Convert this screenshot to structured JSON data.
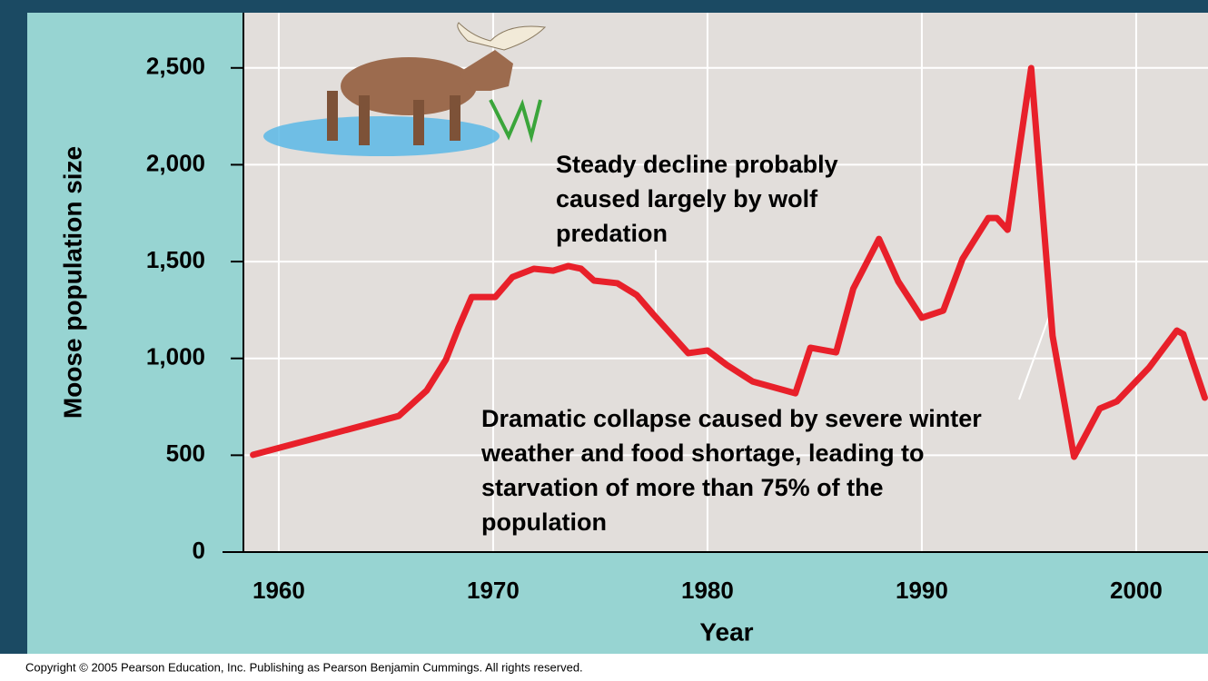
{
  "chart_data": {
    "type": "line",
    "x_label": "Year",
    "y_label": "Moose population size",
    "x": [
      1958.8,
      1965.6,
      1966.9,
      1967.8,
      1968.4,
      1969.0,
      1970.1,
      1970.9,
      1971.9,
      1972.8,
      1973.5,
      1974.1,
      1974.7,
      1975.8,
      1976.7,
      1977.5,
      1979.1,
      1980.0,
      1980.9,
      1982.1,
      1984.1,
      1984.8,
      1986.0,
      1986.8,
      1988.0,
      1988.9,
      1990.0,
      1991.0,
      1991.9,
      1993.1,
      1993.5,
      1994.0,
      1995.1,
      1996.1,
      1997.1,
      1998.3,
      1999.1,
      2000.6,
      2001.9,
      2002.2,
      2003.2
    ],
    "series": [
      {
        "color": "#e8202a",
        "values": [
          502,
          703,
          834,
          994,
          1163,
          1317,
          1317,
          1420,
          1463,
          1453,
          1477,
          1463,
          1402,
          1388,
          1327,
          1224,
          1027,
          1041,
          966,
          881,
          820,
          1055,
          1031,
          1360,
          1617,
          1397,
          1210,
          1247,
          1514,
          1725,
          1725,
          1664,
          2499,
          1116,
          492,
          741,
          778,
          952,
          1144,
          1125,
          797
        ]
      }
    ],
    "xlim": [
      1958.35,
      2003.35
    ],
    "xticks": [
      1960,
      1970,
      1980,
      1990,
      2000
    ],
    "ylim": [
      0,
      2785
    ],
    "yticks": [
      0,
      500,
      {
        "value": 1000,
        "label": "1,000"
      },
      {
        "value": 1500,
        "label": "1,500"
      },
      {
        "value": 2000,
        "label": "2,000"
      },
      {
        "value": 2500,
        "label": "2,500"
      }
    ],
    "grid": true,
    "annotations": [
      {
        "lines": [
          "Steady decline probably",
          "caused largely by wolf",
          "predation"
        ]
      },
      {
        "lines": [
          "Dramatic collapse caused by severe winter",
          "weather and food shortage, leading to",
          "starvation of more than 75% of the",
          "population"
        ]
      }
    ]
  },
  "footer": "Copyright © 2005 Pearson Education, Inc. Publishing as Pearson Benjamin Cummings. All rights reserved."
}
